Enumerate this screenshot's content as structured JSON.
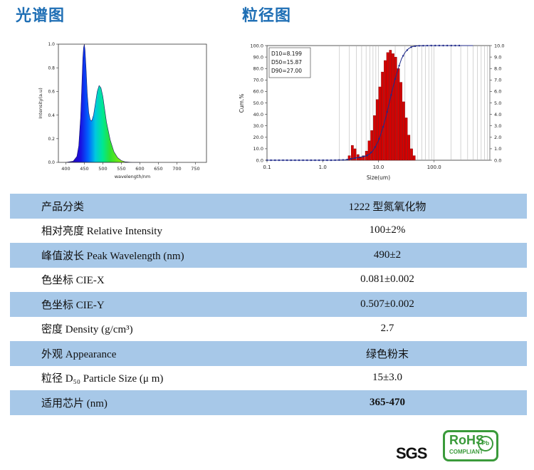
{
  "titles": {
    "spectrum": "光谱图",
    "particle": "粒径图"
  },
  "chart_data": [
    {
      "type": "area",
      "xlabel": "wavelength/nm",
      "ylabel": "Intensity(a.u)",
      "xlim": [
        380,
        780
      ],
      "ylim": [
        0,
        1.0
      ],
      "x_ticks": [
        400,
        450,
        500,
        550,
        600,
        650,
        700,
        750
      ],
      "y_ticks": [
        0.0,
        0.2,
        0.4,
        0.6,
        0.8,
        1.0
      ],
      "x": [
        400,
        420,
        430,
        435,
        440,
        443,
        446,
        448,
        450,
        452,
        455,
        458,
        462,
        466,
        470,
        475,
        480,
        485,
        490,
        495,
        500,
        505,
        510,
        520,
        530,
        540,
        550,
        560,
        580,
        600
      ],
      "y": [
        0.0,
        0.01,
        0.05,
        0.14,
        0.38,
        0.62,
        0.88,
        0.97,
        1.0,
        0.95,
        0.78,
        0.58,
        0.42,
        0.36,
        0.35,
        0.4,
        0.5,
        0.6,
        0.65,
        0.63,
        0.56,
        0.45,
        0.34,
        0.19,
        0.09,
        0.04,
        0.015,
        0.005,
        0.0,
        0.0
      ]
    },
    {
      "type": "bar",
      "xlabel": "Size(um)",
      "ylabel": "Cum.%",
      "scale": "log",
      "xlim": [
        0.1,
        1000
      ],
      "x_ticks": [
        "0.1",
        "1.0",
        "10.0",
        "100.0"
      ],
      "y_ticks": [
        "0.0",
        "10.0",
        "20.0",
        "30.0",
        "40.0",
        "50.0",
        "60.0",
        "70.0",
        "80.0",
        "90.0",
        "100.0"
      ],
      "y2_ticks": [
        "0.0",
        "1.0",
        "2.0",
        "3.0",
        "4.0",
        "5.0",
        "6.0",
        "7.0",
        "8.0",
        "9.0",
        "10.0"
      ],
      "annotation": [
        "D10=8.199",
        "D50=15.87",
        "D90=27.00"
      ],
      "bars_x": [
        3.0,
        3.4,
        3.8,
        4.3,
        4.8,
        5.4,
        6.1,
        6.8,
        7.6,
        8.5,
        9.5,
        10.6,
        11.8,
        13.2,
        14.7,
        16.4,
        18.3,
        20.4,
        22.8,
        25.4,
        28.3,
        31.6,
        35.2,
        39.3,
        43.8
      ],
      "bars_y": [
        0.4,
        1.3,
        1.0,
        0.5,
        0.3,
        0.4,
        0.8,
        1.7,
        2.6,
        3.9,
        5.3,
        6.4,
        7.7,
        8.7,
        9.4,
        9.6,
        9.3,
        9.0,
        8.0,
        6.8,
        5.1,
        3.7,
        2.2,
        1.0,
        0.4
      ],
      "cum_x": [
        0.1,
        0.2,
        0.4,
        0.8,
        1.5,
        2.5,
        3.0,
        3.5,
        4.5,
        6.0,
        7.0,
        8.0,
        9.0,
        10.0,
        11.0,
        12.5,
        14.0,
        16.0,
        18.0,
        20.0,
        23.0,
        26.0,
        30.0,
        35.0,
        40.0,
        50.0,
        80.0,
        150.0,
        500.0
      ],
      "cum_y": [
        0,
        0,
        0,
        0,
        0,
        0.3,
        0.8,
        1.6,
        2.5,
        3.7,
        5.5,
        8.5,
        12.5,
        17,
        22.5,
        31,
        40,
        52,
        62.5,
        71,
        81,
        88.5,
        94,
        97.5,
        99,
        99.8,
        100,
        100,
        100
      ]
    }
  ],
  "table": {
    "rows": [
      {
        "label": "产品分类",
        "value": "1222 型氮氧化物"
      },
      {
        "label": "相对亮度  Relative Intensity",
        "value": "100±2%"
      },
      {
        "label": "峰值波长  Peak Wavelength (nm)",
        "value": "490±2"
      },
      {
        "label": "色坐标  CIE-X",
        "value": "0.081±0.002"
      },
      {
        "label": "色坐标  CIE-Y",
        "value": "0.507±0.002"
      },
      {
        "label": "密度  Density (g/cm³)",
        "value": "2.7"
      },
      {
        "label": "外观  Appearance",
        "value": "绿色粉末"
      },
      {
        "label": "粒径  D₅₀ Particle Size (μ m)",
        "value": "15±3.0"
      },
      {
        "label": "适用芯片  (nm)",
        "value": "365-470"
      }
    ]
  },
  "logos": {
    "sgs": "SGS",
    "rohs": "RoHS",
    "rohs_sub": "COMPLIANT",
    "pb": "Pb"
  },
  "colors": {
    "title": "#1f6fb5",
    "row_blue": "#a7c8e8",
    "bar": "#d40000",
    "cum_line": "#1f2a8a"
  }
}
